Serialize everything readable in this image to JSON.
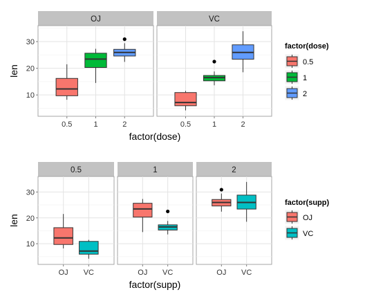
{
  "chart_data": [
    {
      "type": "boxplot",
      "xlabel": "factor(dose)",
      "ylabel": "len",
      "ylim": [
        2,
        36
      ],
      "yticks": [
        10,
        20,
        30
      ],
      "categories": [
        "0.5",
        "1",
        "2"
      ],
      "legend": {
        "title": "factor(dose)",
        "placement": "right",
        "entries": [
          "0.5",
          "1",
          "2"
        ]
      },
      "colors": {
        "0.5": "#F8766D",
        "1": "#00BA38",
        "2": "#619CFF"
      },
      "facets": [
        {
          "label": "OJ",
          "boxes": [
            {
              "category": "0.5",
              "min": 8.2,
              "q1": 9.7,
              "median": 12.25,
              "q3": 16.2,
              "max": 21.5,
              "outliers": []
            },
            {
              "category": "1",
              "min": 14.5,
              "q1": 20.3,
              "median": 23.45,
              "q3": 25.65,
              "max": 27.3,
              "outliers": []
            },
            {
              "category": "2",
              "min": 22.4,
              "q1": 24.6,
              "median": 25.95,
              "q3": 27.1,
              "max": 29.4,
              "outliers": [
                30.9
              ]
            }
          ]
        },
        {
          "label": "VC",
          "boxes": [
            {
              "category": "0.5",
              "min": 4.2,
              "q1": 5.95,
              "median": 7.15,
              "q3": 10.9,
              "max": 11.5,
              "outliers": []
            },
            {
              "category": "1",
              "min": 13.6,
              "q1": 15.3,
              "median": 16.5,
              "q3": 17.3,
              "max": 18.8,
              "outliers": [
                22.5
              ]
            },
            {
              "category": "2",
              "min": 18.5,
              "q1": 23.4,
              "median": 25.95,
              "q3": 28.8,
              "max": 33.9,
              "outliers": []
            }
          ]
        }
      ]
    },
    {
      "type": "boxplot",
      "xlabel": "factor(supp)",
      "ylabel": "len",
      "ylim": [
        2,
        36
      ],
      "yticks": [
        10,
        20,
        30
      ],
      "categories": [
        "OJ",
        "VC"
      ],
      "legend": {
        "title": "factor(supp)",
        "placement": "right",
        "entries": [
          "OJ",
          "VC"
        ]
      },
      "colors": {
        "OJ": "#F8766D",
        "VC": "#00BFC4"
      },
      "facets": [
        {
          "label": "0.5",
          "boxes": [
            {
              "category": "OJ",
              "min": 8.2,
              "q1": 9.7,
              "median": 12.25,
              "q3": 16.2,
              "max": 21.5,
              "outliers": []
            },
            {
              "category": "VC",
              "min": 4.2,
              "q1": 5.95,
              "median": 7.15,
              "q3": 10.9,
              "max": 11.5,
              "outliers": []
            }
          ]
        },
        {
          "label": "1",
          "boxes": [
            {
              "category": "OJ",
              "min": 14.5,
              "q1": 20.3,
              "median": 23.45,
              "q3": 25.65,
              "max": 27.3,
              "outliers": []
            },
            {
              "category": "VC",
              "min": 13.6,
              "q1": 15.3,
              "median": 16.5,
              "q3": 17.3,
              "max": 18.8,
              "outliers": [
                22.5
              ]
            }
          ]
        },
        {
          "label": "2",
          "boxes": [
            {
              "category": "OJ",
              "min": 22.4,
              "q1": 24.6,
              "median": 25.95,
              "q3": 27.1,
              "max": 29.4,
              "outliers": [
                30.9
              ]
            },
            {
              "category": "VC",
              "min": 18.5,
              "q1": 23.4,
              "median": 25.95,
              "q3": 28.8,
              "max": 33.9,
              "outliers": []
            }
          ]
        }
      ]
    }
  ]
}
